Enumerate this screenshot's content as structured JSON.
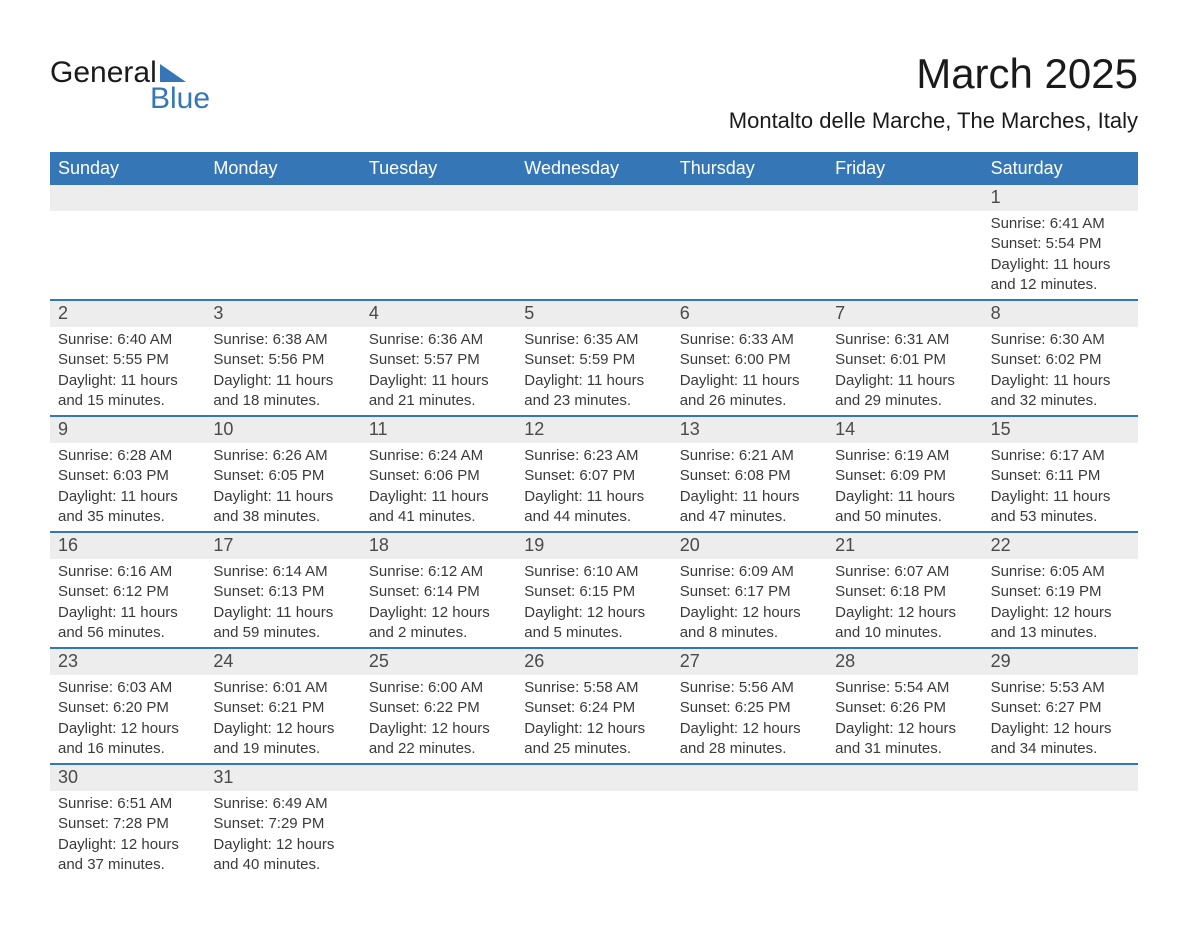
{
  "logo": {
    "line1": "General",
    "line2": "Blue"
  },
  "title": "March 2025",
  "location": "Montalto delle Marche, The Marches, Italy",
  "headers": [
    "Sunday",
    "Monday",
    "Tuesday",
    "Wednesday",
    "Thursday",
    "Friday",
    "Saturday"
  ],
  "colors": {
    "header_bg": "#3577B6",
    "header_text": "#ffffff",
    "daynum_bg": "#ededed",
    "daynum_text": "#4a4a4a",
    "body_text": "#3a3a3a",
    "row_border": "#3577B6",
    "logo_text": "#1a1a1a",
    "logo_accent": "#3577B6"
  },
  "typography": {
    "month_title_fontsize": 42,
    "location_fontsize": 22,
    "header_fontsize": 18,
    "daynum_fontsize": 18,
    "body_fontsize": 15
  },
  "labels": {
    "sunrise": "Sunrise:",
    "sunset": "Sunset:",
    "daylight": "Daylight:"
  },
  "weeks": [
    [
      null,
      null,
      null,
      null,
      null,
      null,
      {
        "day": "1",
        "sunrise": "6:41 AM",
        "sunset": "5:54 PM",
        "daylight_l1": "11 hours",
        "daylight_l2": "and 12 minutes."
      }
    ],
    [
      {
        "day": "2",
        "sunrise": "6:40 AM",
        "sunset": "5:55 PM",
        "daylight_l1": "11 hours",
        "daylight_l2": "and 15 minutes."
      },
      {
        "day": "3",
        "sunrise": "6:38 AM",
        "sunset": "5:56 PM",
        "daylight_l1": "11 hours",
        "daylight_l2": "and 18 minutes."
      },
      {
        "day": "4",
        "sunrise": "6:36 AM",
        "sunset": "5:57 PM",
        "daylight_l1": "11 hours",
        "daylight_l2": "and 21 minutes."
      },
      {
        "day": "5",
        "sunrise": "6:35 AM",
        "sunset": "5:59 PM",
        "daylight_l1": "11 hours",
        "daylight_l2": "and 23 minutes."
      },
      {
        "day": "6",
        "sunrise": "6:33 AM",
        "sunset": "6:00 PM",
        "daylight_l1": "11 hours",
        "daylight_l2": "and 26 minutes."
      },
      {
        "day": "7",
        "sunrise": "6:31 AM",
        "sunset": "6:01 PM",
        "daylight_l1": "11 hours",
        "daylight_l2": "and 29 minutes."
      },
      {
        "day": "8",
        "sunrise": "6:30 AM",
        "sunset": "6:02 PM",
        "daylight_l1": "11 hours",
        "daylight_l2": "and 32 minutes."
      }
    ],
    [
      {
        "day": "9",
        "sunrise": "6:28 AM",
        "sunset": "6:03 PM",
        "daylight_l1": "11 hours",
        "daylight_l2": "and 35 minutes."
      },
      {
        "day": "10",
        "sunrise": "6:26 AM",
        "sunset": "6:05 PM",
        "daylight_l1": "11 hours",
        "daylight_l2": "and 38 minutes."
      },
      {
        "day": "11",
        "sunrise": "6:24 AM",
        "sunset": "6:06 PM",
        "daylight_l1": "11 hours",
        "daylight_l2": "and 41 minutes."
      },
      {
        "day": "12",
        "sunrise": "6:23 AM",
        "sunset": "6:07 PM",
        "daylight_l1": "11 hours",
        "daylight_l2": "and 44 minutes."
      },
      {
        "day": "13",
        "sunrise": "6:21 AM",
        "sunset": "6:08 PM",
        "daylight_l1": "11 hours",
        "daylight_l2": "and 47 minutes."
      },
      {
        "day": "14",
        "sunrise": "6:19 AM",
        "sunset": "6:09 PM",
        "daylight_l1": "11 hours",
        "daylight_l2": "and 50 minutes."
      },
      {
        "day": "15",
        "sunrise": "6:17 AM",
        "sunset": "6:11 PM",
        "daylight_l1": "11 hours",
        "daylight_l2": "and 53 minutes."
      }
    ],
    [
      {
        "day": "16",
        "sunrise": "6:16 AM",
        "sunset": "6:12 PM",
        "daylight_l1": "11 hours",
        "daylight_l2": "and 56 minutes."
      },
      {
        "day": "17",
        "sunrise": "6:14 AM",
        "sunset": "6:13 PM",
        "daylight_l1": "11 hours",
        "daylight_l2": "and 59 minutes."
      },
      {
        "day": "18",
        "sunrise": "6:12 AM",
        "sunset": "6:14 PM",
        "daylight_l1": "12 hours",
        "daylight_l2": "and 2 minutes."
      },
      {
        "day": "19",
        "sunrise": "6:10 AM",
        "sunset": "6:15 PM",
        "daylight_l1": "12 hours",
        "daylight_l2": "and 5 minutes."
      },
      {
        "day": "20",
        "sunrise": "6:09 AM",
        "sunset": "6:17 PM",
        "daylight_l1": "12 hours",
        "daylight_l2": "and 8 minutes."
      },
      {
        "day": "21",
        "sunrise": "6:07 AM",
        "sunset": "6:18 PM",
        "daylight_l1": "12 hours",
        "daylight_l2": "and 10 minutes."
      },
      {
        "day": "22",
        "sunrise": "6:05 AM",
        "sunset": "6:19 PM",
        "daylight_l1": "12 hours",
        "daylight_l2": "and 13 minutes."
      }
    ],
    [
      {
        "day": "23",
        "sunrise": "6:03 AM",
        "sunset": "6:20 PM",
        "daylight_l1": "12 hours",
        "daylight_l2": "and 16 minutes."
      },
      {
        "day": "24",
        "sunrise": "6:01 AM",
        "sunset": "6:21 PM",
        "daylight_l1": "12 hours",
        "daylight_l2": "and 19 minutes."
      },
      {
        "day": "25",
        "sunrise": "6:00 AM",
        "sunset": "6:22 PM",
        "daylight_l1": "12 hours",
        "daylight_l2": "and 22 minutes."
      },
      {
        "day": "26",
        "sunrise": "5:58 AM",
        "sunset": "6:24 PM",
        "daylight_l1": "12 hours",
        "daylight_l2": "and 25 minutes."
      },
      {
        "day": "27",
        "sunrise": "5:56 AM",
        "sunset": "6:25 PM",
        "daylight_l1": "12 hours",
        "daylight_l2": "and 28 minutes."
      },
      {
        "day": "28",
        "sunrise": "5:54 AM",
        "sunset": "6:26 PM",
        "daylight_l1": "12 hours",
        "daylight_l2": "and 31 minutes."
      },
      {
        "day": "29",
        "sunrise": "5:53 AM",
        "sunset": "6:27 PM",
        "daylight_l1": "12 hours",
        "daylight_l2": "and 34 minutes."
      }
    ],
    [
      {
        "day": "30",
        "sunrise": "6:51 AM",
        "sunset": "7:28 PM",
        "daylight_l1": "12 hours",
        "daylight_l2": "and 37 minutes."
      },
      {
        "day": "31",
        "sunrise": "6:49 AM",
        "sunset": "7:29 PM",
        "daylight_l1": "12 hours",
        "daylight_l2": "and 40 minutes."
      },
      null,
      null,
      null,
      null,
      null
    ]
  ]
}
